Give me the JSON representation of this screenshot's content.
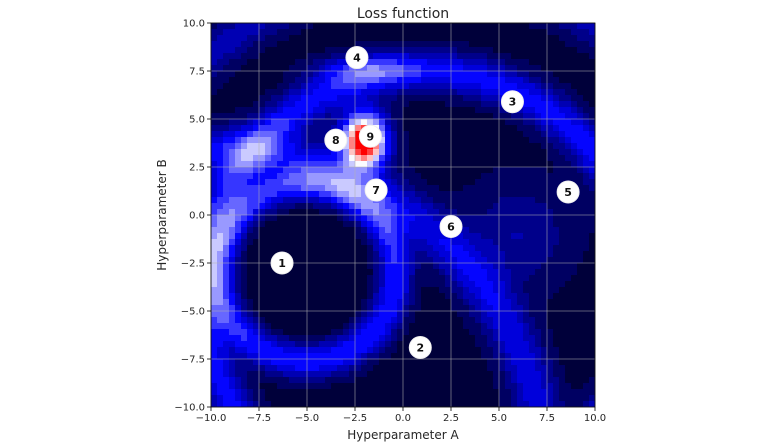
{
  "chart_data": {
    "type": "heatmap",
    "title": "Loss function",
    "xlabel": "Hyperparameter A",
    "ylabel": "Hyperparameter B",
    "xlim": [
      -10.0,
      10.0
    ],
    "ylim": [
      -10.0,
      10.0
    ],
    "x_ticks": [
      -10.0,
      -7.5,
      -5.0,
      -2.5,
      0.0,
      2.5,
      5.0,
      7.5,
      10.0
    ],
    "y_ticks": [
      -10.0,
      -7.5,
      -5.0,
      -2.5,
      0.0,
      2.5,
      5.0,
      7.5,
      10.0
    ],
    "x_tick_labels": [
      "−10.0",
      "−7.5",
      "−5.0",
      "−2.5",
      "0.0",
      "2.5",
      "5.0",
      "7.5",
      "10.0"
    ],
    "y_tick_labels": [
      "−10.0",
      "−7.5",
      "−5.0",
      "−2.5",
      "0.0",
      "2.5",
      "5.0",
      "7.5",
      "10.0"
    ],
    "grid": true,
    "colormap": [
      "#00003a",
      "#0000ff",
      "#ffffff",
      "#ff0000"
    ],
    "points": [
      {
        "label": "1",
        "x": -6.3,
        "y": -2.5
      },
      {
        "label": "2",
        "x": 0.9,
        "y": -6.9
      },
      {
        "label": "3",
        "x": 5.7,
        "y": 5.9
      },
      {
        "label": "4",
        "x": -2.4,
        "y": 8.2
      },
      {
        "label": "5",
        "x": 8.6,
        "y": 1.2
      },
      {
        "label": "6",
        "x": 2.5,
        "y": -0.6
      },
      {
        "label": "7",
        "x": -1.4,
        "y": 1.3
      },
      {
        "label": "8",
        "x": -3.5,
        "y": 3.9
      },
      {
        "label": "9",
        "x": -1.7,
        "y": 4.1
      }
    ]
  }
}
